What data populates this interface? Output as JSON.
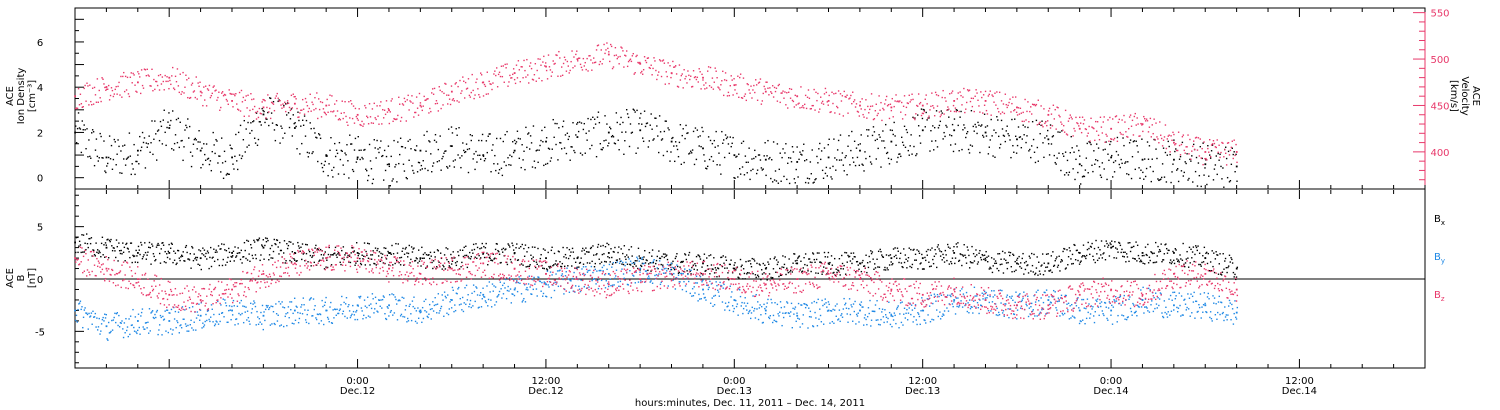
{
  "chart_data": [
    {
      "type": "scatter",
      "panel": "top",
      "ylabel_left": [
        "ACE",
        "Ion Density",
        "[cm⁻³]"
      ],
      "ylabel_right": [
        "ACE",
        "Velocity",
        "[km/s]"
      ],
      "x_range_hours": [
        -18,
        68
      ],
      "x_data_extent_hours": [
        -18,
        56
      ],
      "left_axis": {
        "ylim": [
          -0.5,
          7.5
        ],
        "ticks": [
          0,
          2,
          4,
          6
        ]
      },
      "right_axis": {
        "ylim": [
          360,
          555
        ],
        "ticks": [
          400,
          450,
          500,
          550
        ]
      },
      "series": [
        {
          "axis": "left",
          "color": "#000000",
          "x": [
            -18,
            -16,
            -14,
            -12,
            -10,
            -8,
            -6,
            -4,
            -2,
            0,
            2,
            4,
            6,
            8,
            10,
            12,
            14,
            16,
            18,
            20,
            22,
            24,
            26,
            28,
            30,
            32,
            34,
            36,
            38,
            40,
            42,
            44,
            46,
            48,
            50,
            52,
            54,
            56
          ],
          "values": [
            2.0,
            0.9,
            1.2,
            2.2,
            1.2,
            0.9,
            2.8,
            2.2,
            1.0,
            0.9,
            0.6,
            1.2,
            1.4,
            1.0,
            1.2,
            1.6,
            1.8,
            2.0,
            2.1,
            1.6,
            1.3,
            1.0,
            0.8,
            0.7,
            0.9,
            1.2,
            1.6,
            2.1,
            2.1,
            2.0,
            1.7,
            1.7,
            0.6,
            0.9,
            0.8,
            0.8,
            0.6,
            0.5
          ]
        },
        {
          "axis": "right",
          "color": "#e8386a",
          "x": [
            -18,
            -16,
            -14,
            -12,
            -10,
            -8,
            -6,
            -4,
            -2,
            0,
            2,
            4,
            6,
            8,
            10,
            12,
            14,
            16,
            18,
            20,
            22,
            24,
            26,
            28,
            30,
            32,
            34,
            36,
            38,
            40,
            42,
            44,
            46,
            48,
            50,
            52,
            54,
            56
          ],
          "values": [
            460,
            470,
            475,
            480,
            465,
            455,
            448,
            452,
            450,
            440,
            445,
            450,
            465,
            475,
            485,
            492,
            500,
            505,
            495,
            485,
            480,
            472,
            465,
            460,
            455,
            450,
            448,
            450,
            455,
            455,
            448,
            440,
            425,
            425,
            430,
            410,
            400,
            400
          ]
        }
      ]
    },
    {
      "type": "scatter",
      "panel": "bottom",
      "ylabel_left": [
        "ACE",
        "B",
        "[nT]"
      ],
      "x_range_hours": [
        -18,
        68
      ],
      "x_data_extent_hours": [
        -18,
        56
      ],
      "ylim": [
        -8.5,
        8.5
      ],
      "ticks": [
        -5,
        0,
        5
      ],
      "zero_line": true,
      "series": [
        {
          "name": "B",
          "sub": "x",
          "color": "#000000",
          "x": [
            -18,
            -16,
            -14,
            -12,
            -10,
            -8,
            -6,
            -4,
            -2,
            0,
            2,
            4,
            6,
            8,
            10,
            12,
            14,
            16,
            18,
            20,
            22,
            24,
            26,
            28,
            30,
            32,
            34,
            36,
            38,
            40,
            42,
            44,
            46,
            48,
            50,
            52,
            54,
            56
          ],
          "values": [
            3.5,
            3.0,
            2.5,
            2.5,
            2.0,
            2.5,
            3.0,
            2.5,
            2.0,
            2.5,
            2.5,
            2.0,
            2.0,
            2.5,
            2.5,
            2.0,
            2.0,
            2.5,
            2.0,
            1.5,
            1.5,
            1.0,
            1.0,
            1.5,
            1.5,
            1.5,
            2.0,
            2.0,
            2.5,
            1.8,
            1.5,
            1.5,
            2.5,
            3.0,
            2.5,
            2.5,
            2.0,
            1.0
          ]
        },
        {
          "name": "B",
          "sub": "y",
          "color": "#1e88e5",
          "x": [
            -18,
            -16,
            -14,
            -12,
            -10,
            -8,
            -6,
            -4,
            -2,
            0,
            2,
            4,
            6,
            8,
            10,
            12,
            14,
            16,
            18,
            20,
            22,
            24,
            26,
            28,
            30,
            32,
            34,
            36,
            38,
            40,
            42,
            44,
            46,
            48,
            50,
            52,
            54,
            56
          ],
          "values": [
            -3.0,
            -4.5,
            -4.0,
            -4.0,
            -3.5,
            -3.0,
            -3.5,
            -3.0,
            -3.0,
            -2.5,
            -2.5,
            -3.0,
            -2.0,
            -1.5,
            -1.0,
            -0.5,
            0.0,
            0.5,
            1.0,
            0.5,
            -1.0,
            -2.0,
            -3.0,
            -3.5,
            -3.0,
            -3.0,
            -3.5,
            -3.0,
            -2.0,
            -2.0,
            -2.5,
            -2.0,
            -3.0,
            -3.0,
            -2.0,
            -2.5,
            -2.5,
            -3.2
          ]
        },
        {
          "name": "B",
          "sub": "z",
          "color": "#e8386a",
          "x": [
            -18,
            -16,
            -14,
            -12,
            -10,
            -8,
            -6,
            -4,
            -2,
            0,
            2,
            4,
            6,
            8,
            10,
            12,
            14,
            16,
            18,
            20,
            22,
            24,
            26,
            28,
            30,
            32,
            34,
            36,
            38,
            40,
            42,
            44,
            46,
            48,
            50,
            52,
            54,
            56
          ],
          "values": [
            2.0,
            1.0,
            0.0,
            -1.5,
            -2.0,
            -1.0,
            0.5,
            1.5,
            2.0,
            2.0,
            1.0,
            0.5,
            1.0,
            1.5,
            1.0,
            0.5,
            0.0,
            -0.5,
            0.0,
            0.5,
            0.5,
            0.0,
            -0.5,
            0.0,
            0.5,
            0.0,
            -1.0,
            -1.5,
            -1.0,
            -2.0,
            -2.5,
            -2.5,
            -1.5,
            -1.0,
            -1.5,
            0.5,
            0.5,
            -1.0
          ]
        }
      ]
    }
  ],
  "time_axis": {
    "major_ticks": [
      {
        "hour": 0,
        "time": "0:00",
        "date": "Dec.12"
      },
      {
        "hour": 12,
        "time": "12:00",
        "date": "Dec.12"
      },
      {
        "hour": 24,
        "time": "0:00",
        "date": "Dec.13"
      },
      {
        "hour": 36,
        "time": "12:00",
        "date": "Dec.13"
      },
      {
        "hour": 48,
        "time": "0:00",
        "date": "Dec.14"
      },
      {
        "hour": 60,
        "time": "12:00",
        "date": "Dec.14"
      }
    ],
    "title": "hours:minutes, Dec. 11, 2011 – Dec. 14, 2011"
  }
}
